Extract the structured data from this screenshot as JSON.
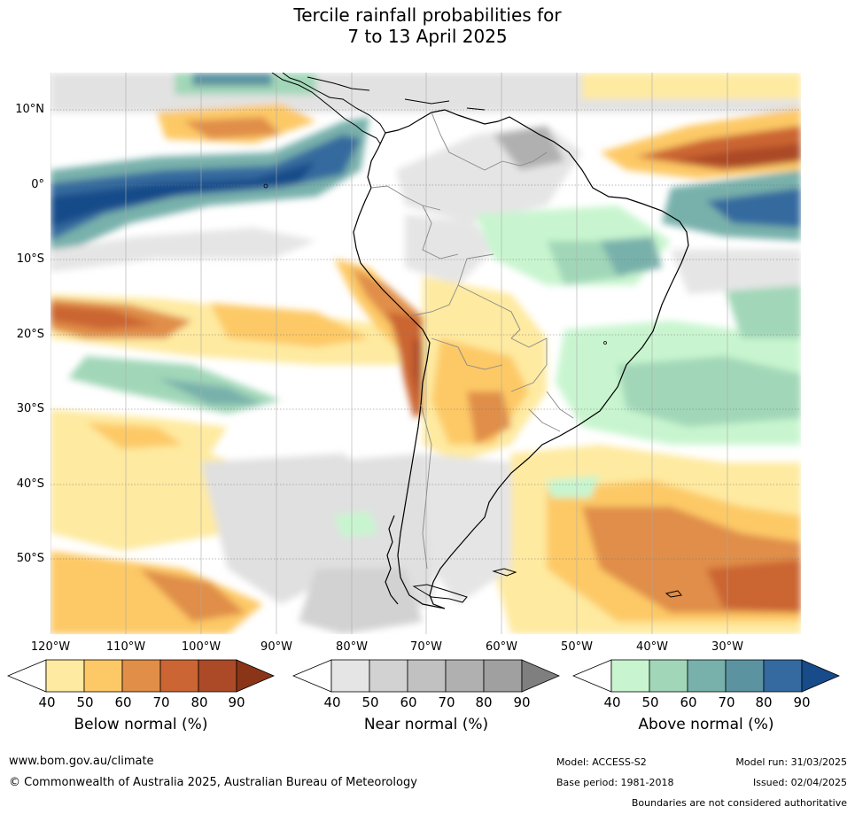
{
  "title": {
    "line1": "Tercile rainfall probabilities for",
    "line2": "7 to 13 April 2025"
  },
  "map": {
    "lat_labels": [
      "10°N",
      "0°",
      "10°S",
      "20°S",
      "30°S",
      "40°S",
      "50°S"
    ],
    "lon_labels": [
      "120°W",
      "110°W",
      "100°W",
      "90°W",
      "80°W",
      "70°W",
      "60°W",
      "50°W",
      "40°W",
      "30°W"
    ],
    "ocean_color": "#ffffff",
    "land_outline_color": "#000000",
    "border_color": "#888888",
    "grid_color": "#777777"
  },
  "legend": {
    "below": {
      "title": "Below normal (%)",
      "ticks": [
        "40",
        "50",
        "60",
        "70",
        "80",
        "90"
      ],
      "colors": [
        "#ffffff",
        "#feeaa0",
        "#fdc966",
        "#e08e48",
        "#cb6533",
        "#ac4a28",
        "#8b3518"
      ]
    },
    "near": {
      "title": "Near normal (%)",
      "ticks": [
        "40",
        "50",
        "60",
        "70",
        "80",
        "90"
      ],
      "colors": [
        "#ffffff",
        "#e5e5e5",
        "#d2d2d2",
        "#c1c1c1",
        "#b0b0b0",
        "#a0a0a0",
        "#7f7f7f"
      ]
    },
    "above": {
      "title": "Above normal (%)",
      "ticks": [
        "40",
        "50",
        "60",
        "70",
        "80",
        "90"
      ],
      "colors": [
        "#ffffff",
        "#c8f5cf",
        "#a1d7b8",
        "#78b1ab",
        "#5c93a1",
        "#346a9f",
        "#174b89"
      ]
    }
  },
  "footer": {
    "website": "www.bom.gov.au/climate",
    "copyright": "© Commonwealth of Australia 2025, Australian Bureau of Meteorology",
    "model": "Model: ACCESS-S2",
    "base_period": "Base period: 1981-2018",
    "model_run": "Model run: 31/03/2025",
    "issued": "Issued: 02/04/2025",
    "disclaimer": "Boundaries are not considered authoritative"
  }
}
